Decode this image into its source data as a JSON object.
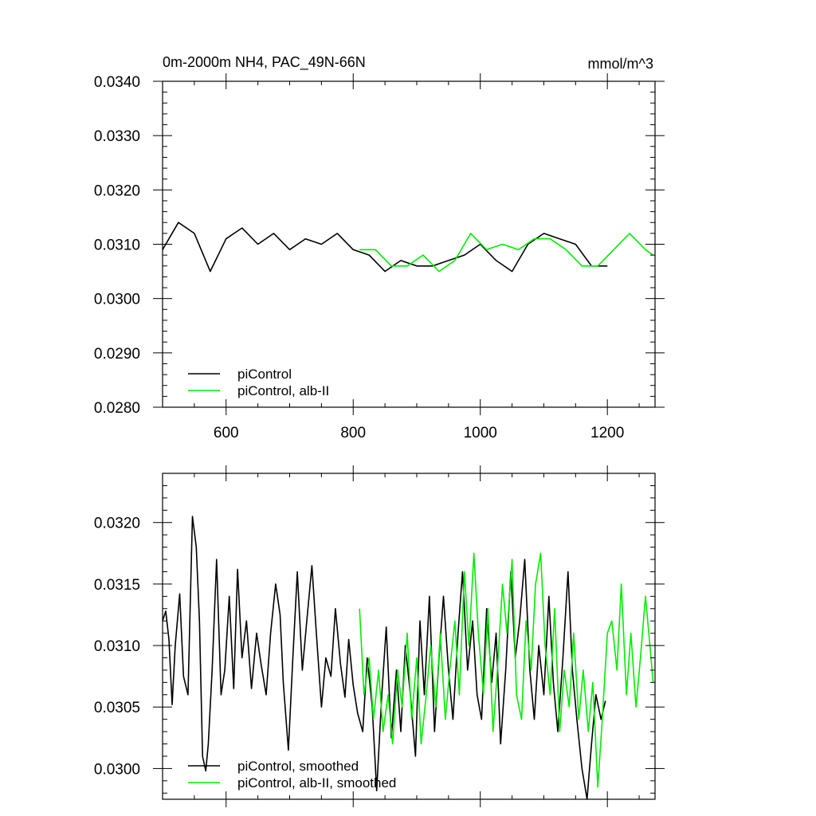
{
  "chart_data": [
    {
      "type": "line",
      "title": "0m-2000m NH4, PAC_49N-66N",
      "units": "mmol/m^3",
      "xlim": [
        500,
        1275
      ],
      "ylim": [
        0.028,
        0.034
      ],
      "x_ticks": [
        600,
        800,
        1000,
        1200
      ],
      "x_tick_labels": [
        "600",
        "800",
        "1000",
        "1200"
      ],
      "y_ticks": [
        0.028,
        0.029,
        0.03,
        0.031,
        0.032,
        0.033,
        0.034
      ],
      "y_tick_labels": [
        "0.0280",
        "0.0290",
        "0.0300",
        "0.0310",
        "0.0320",
        "0.0330",
        "0.0340"
      ],
      "grid": false,
      "legend": "bottom-left",
      "series": [
        {
          "name": "piControl",
          "color": "#000000",
          "x": [
            500,
            525,
            550,
            575,
            600,
            625,
            650,
            675,
            700,
            725,
            750,
            775,
            800,
            825,
            850,
            875,
            900,
            925,
            950,
            975,
            1000,
            1025,
            1050,
            1075,
            1100,
            1125,
            1150,
            1175,
            1200
          ],
          "values": [
            0.0309,
            0.0314,
            0.0312,
            0.0305,
            0.0311,
            0.0313,
            0.031,
            0.0312,
            0.0309,
            0.0311,
            0.031,
            0.0312,
            0.0309,
            0.0308,
            0.0305,
            0.0307,
            0.0306,
            0.0306,
            0.0307,
            0.0308,
            0.031,
            0.0307,
            0.0305,
            0.031,
            0.0312,
            0.0311,
            0.031,
            0.0306,
            0.0306
          ]
        },
        {
          "name": "piControl, alb-II",
          "color": "#00ee00",
          "x": [
            810,
            835,
            860,
            885,
            910,
            935,
            960,
            985,
            1010,
            1035,
            1060,
            1085,
            1110,
            1135,
            1160,
            1185,
            1210,
            1235,
            1260,
            1272
          ],
          "values": [
            0.0309,
            0.0309,
            0.0306,
            0.0306,
            0.0308,
            0.0305,
            0.0307,
            0.0312,
            0.0309,
            0.031,
            0.0309,
            0.0311,
            0.0311,
            0.0309,
            0.0306,
            0.0306,
            0.0309,
            0.0312,
            0.0309,
            0.0308
          ]
        }
      ]
    },
    {
      "type": "line",
      "xlim": [
        500,
        1275
      ],
      "ylim": [
        0.02975,
        0.0324
      ],
      "x_ticks": [
        600,
        800,
        1000,
        1200
      ],
      "y_ticks": [
        0.03,
        0.0305,
        0.031,
        0.0315,
        0.032
      ],
      "y_tick_labels": [
        "0.0300",
        "0.0305",
        "0.0310",
        "0.0315",
        "0.0320"
      ],
      "grid": false,
      "legend": "bottom-left",
      "series": [
        {
          "name": "piControl, smoothed",
          "color": "#000000",
          "x": [
            500,
            505,
            510,
            515,
            520,
            527,
            533,
            540,
            547,
            553,
            558,
            563,
            568,
            572,
            578,
            585,
            592,
            598,
            605,
            612,
            618,
            625,
            632,
            640,
            648,
            655,
            663,
            670,
            678,
            685,
            690,
            698,
            705,
            712,
            720,
            727,
            735,
            742,
            750,
            757,
            765,
            772,
            780,
            787,
            793,
            800,
            807,
            815,
            822,
            830,
            837,
            845,
            852,
            860,
            868,
            875,
            882,
            890,
            898,
            905,
            912,
            920,
            928,
            935,
            942,
            950,
            957,
            965,
            972,
            980,
            988,
            995,
            1002,
            1010,
            1018,
            1025,
            1032,
            1040,
            1048,
            1055,
            1062,
            1070,
            1078,
            1085,
            1092,
            1100,
            1108,
            1115,
            1122,
            1130,
            1138,
            1145,
            1152,
            1160,
            1168,
            1175,
            1182,
            1190,
            1197
          ],
          "values": [
            0.0312,
            0.03128,
            0.03105,
            0.03052,
            0.031,
            0.03142,
            0.03075,
            0.0306,
            0.03205,
            0.0318,
            0.0312,
            0.0301,
            0.02998,
            0.0302,
            0.0308,
            0.0317,
            0.0306,
            0.0308,
            0.0314,
            0.03065,
            0.03162,
            0.0309,
            0.0312,
            0.03065,
            0.0311,
            0.03085,
            0.0306,
            0.0311,
            0.0315,
            0.03125,
            0.0307,
            0.03015,
            0.0309,
            0.0316,
            0.0308,
            0.0312,
            0.03165,
            0.0311,
            0.0305,
            0.0309,
            0.03075,
            0.0313,
            0.03085,
            0.03058,
            0.03105,
            0.03068,
            0.03045,
            0.0303,
            0.0309,
            0.0305,
            0.02982,
            0.0306,
            0.03115,
            0.03025,
            0.0308,
            0.0303,
            0.031,
            0.0306,
            0.0301,
            0.0312,
            0.0306,
            0.0314,
            0.0303,
            0.0309,
            0.0314,
            0.0308,
            0.0304,
            0.0311,
            0.0316,
            0.0308,
            0.0312,
            0.0306,
            0.0304,
            0.0313,
            0.0307,
            0.0311,
            0.0302,
            0.0308,
            0.0316,
            0.0309,
            0.0312,
            0.0317,
            0.0308,
            0.0304,
            0.031,
            0.0306,
            0.0314,
            0.0307,
            0.0303,
            0.0309,
            0.0316,
            0.0308,
            0.0304,
            0.03,
            0.02975,
            0.0302,
            0.0306,
            0.0304,
            0.03055
          ]
        },
        {
          "name": "piControl, alb-II, smoothed",
          "color": "#00ee00",
          "x": [
            810,
            817,
            825,
            832,
            840,
            847,
            855,
            862,
            870,
            877,
            885,
            892,
            900,
            907,
            915,
            922,
            930,
            937,
            945,
            952,
            960,
            967,
            975,
            982,
            990,
            997,
            1005,
            1012,
            1020,
            1027,
            1035,
            1042,
            1050,
            1057,
            1065,
            1072,
            1080,
            1087,
            1095,
            1102,
            1110,
            1117,
            1125,
            1132,
            1140,
            1147,
            1155,
            1162,
            1170,
            1177,
            1185,
            1192,
            1200,
            1207,
            1215,
            1222,
            1230,
            1237,
            1245,
            1252,
            1260,
            1267,
            1272
          ],
          "values": [
            0.0313,
            0.0306,
            0.0309,
            0.0304,
            0.0308,
            0.0303,
            0.0306,
            0.0302,
            0.0308,
            0.0305,
            0.0311,
            0.0304,
            0.0309,
            0.0302,
            0.0306,
            0.031,
            0.0305,
            0.0311,
            0.0304,
            0.0308,
            0.0312,
            0.0306,
            0.0316,
            0.031,
            0.03175,
            0.0311,
            0.0306,
            0.0313,
            0.0303,
            0.0308,
            0.0315,
            0.0311,
            0.0317,
            0.0306,
            0.0304,
            0.0312,
            0.0308,
            0.0315,
            0.03175,
            0.031,
            0.0306,
            0.0313,
            0.0303,
            0.0308,
            0.0305,
            0.0311,
            0.0304,
            0.0308,
            0.0303,
            0.0307,
            0.02985,
            0.0304,
            0.0311,
            0.0312,
            0.0308,
            0.0315,
            0.0306,
            0.0311,
            0.0305,
            0.0309,
            0.0314,
            0.031,
            0.0307
          ]
        }
      ]
    }
  ]
}
